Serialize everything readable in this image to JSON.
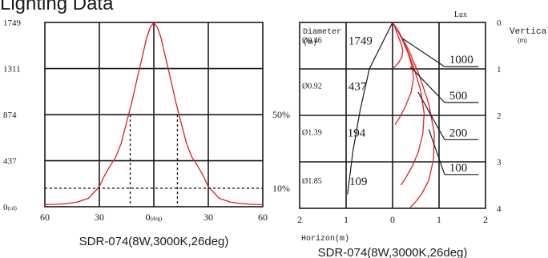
{
  "page_title": "Lighting Data",
  "chart_data": [
    {
      "type": "line",
      "title": "",
      "caption": "SDR-074(8W,3000K,26deg)",
      "xlabel": "",
      "ylabel": "",
      "x_tick_labels": [
        "60",
        "30",
        "0",
        "30",
        "60"
      ],
      "x_center_unit": "(deg)",
      "y_tick_labels": [
        "1749",
        "1311",
        "874",
        "437",
        "0"
      ],
      "y_zero_unit": "(cd)",
      "xlim": [
        -60,
        60
      ],
      "ylim": [
        0,
        1749
      ],
      "grid": true,
      "series": [
        {
          "x": [
            -60,
            -54,
            -48,
            -42,
            -36,
            -30,
            -27,
            -24,
            -21,
            -18,
            -15,
            -12,
            -9,
            -6,
            -4,
            -2,
            0,
            2,
            4,
            6,
            9,
            12,
            15,
            18,
            21,
            24,
            27,
            30,
            36,
            42,
            48,
            54,
            60
          ],
          "y": [
            20,
            23,
            30,
            45,
            80,
            190,
            300,
            390,
            470,
            600,
            800,
            1000,
            1230,
            1450,
            1600,
            1700,
            1749,
            1700,
            1600,
            1450,
            1230,
            1000,
            800,
            600,
            470,
            390,
            300,
            190,
            80,
            45,
            30,
            23,
            20
          ]
        }
      ],
      "annotations": [
        {
          "label": "50%",
          "value": 874,
          "angles": [
            -13,
            13
          ]
        },
        {
          "label": "10%",
          "value": 175
        }
      ]
    },
    {
      "type": "line",
      "title": "",
      "caption": "SDR-074(8W,3000K,26deg)",
      "unit_label": "Lux",
      "left_header": [
        "Diameter",
        "(m)"
      ],
      "right_header": [
        "Vertical",
        "(m)"
      ],
      "xlabel": "Horizon(m)",
      "x_tick_labels": [
        "2",
        "1",
        "0",
        "1",
        "2"
      ],
      "y_tick_labels": [
        "0",
        "1",
        "2",
        "3",
        "4"
      ],
      "xlim": [
        -2,
        2
      ],
      "ylim": [
        0,
        4
      ],
      "grid": true,
      "rows": [
        {
          "diameter": "Ø0.46",
          "lux": "1749"
        },
        {
          "diameter": "Ø0.92",
          "lux": "437"
        },
        {
          "diameter": "Ø1.39",
          "lux": "194"
        },
        {
          "diameter": "Ø1.85",
          "lux": "109"
        }
      ],
      "isolux_labels": [
        "1000",
        "500",
        "200",
        "100"
      ],
      "series": [
        {
          "x": [
            0,
            0.05,
            0.12,
            0.18,
            0.22,
            0.2,
            0.12,
            0.05,
            0.0
          ],
          "y": [
            0,
            0.1,
            0.3,
            0.45,
            0.6,
            0.75,
            0.88,
            0.95,
            1.0
          ]
        },
        {
          "x": [
            0,
            0.08,
            0.2,
            0.33,
            0.42,
            0.45,
            0.4,
            0.28,
            0.15,
            0.05
          ],
          "y": [
            0,
            0.12,
            0.35,
            0.65,
            0.95,
            1.2,
            1.5,
            1.8,
            2.05,
            2.2
          ]
        },
        {
          "x": [
            0,
            0.1,
            0.28,
            0.45,
            0.6,
            0.68,
            0.65,
            0.55,
            0.42,
            0.28,
            0.18
          ],
          "y": [
            0,
            0.15,
            0.5,
            0.95,
            1.45,
            1.95,
            2.4,
            2.8,
            3.1,
            3.35,
            3.5
          ]
        },
        {
          "x": [
            0,
            0.12,
            0.35,
            0.58,
            0.78,
            0.9,
            0.88,
            0.78,
            0.62,
            0.48,
            0.38
          ],
          "y": [
            0,
            0.18,
            0.6,
            1.15,
            1.75,
            2.4,
            2.95,
            3.4,
            3.7,
            3.88,
            3.98
          ]
        }
      ]
    }
  ]
}
